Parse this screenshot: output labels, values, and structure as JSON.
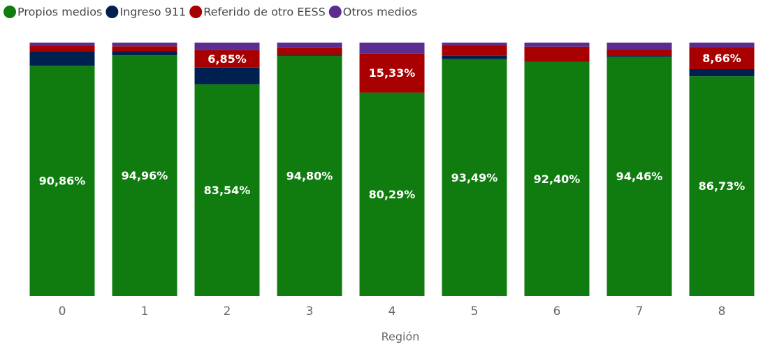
{
  "chart_data": {
    "type": "stacked_bar_100",
    "x_label": "Región",
    "categories": [
      "0",
      "1",
      "2",
      "3",
      "4",
      "5",
      "6",
      "7",
      "8"
    ],
    "ylim": [
      0,
      100
    ],
    "series": [
      {
        "name": "Propios medios",
        "color": "#107c10",
        "values": [
          90.86,
          94.96,
          83.54,
          94.8,
          80.29,
          93.49,
          92.4,
          94.46,
          86.73
        ],
        "value_labels": [
          "90,86%",
          "94,96%",
          "83,54%",
          "94,80%",
          "80,29%",
          "93,49%",
          "92,40%",
          "94,46%",
          "86,73%"
        ]
      },
      {
        "name": "Ingreso 911",
        "color": "#002050",
        "values": [
          5.8,
          1.6,
          6.6,
          0.4,
          0,
          1.3,
          0,
          0.3,
          2.8
        ]
      },
      {
        "name": "Referido de otro EESS",
        "color": "#a80000",
        "values": [
          2.2,
          2.0,
          6.85,
          2.8,
          15.33,
          4.2,
          6.0,
          2.7,
          8.66
        ],
        "value_labels": [
          null,
          null,
          "6,85%",
          null,
          "15,33%",
          null,
          null,
          null,
          "8,66%"
        ]
      },
      {
        "name": "Otros medios",
        "color": "#5c2d91",
        "values": [
          1.14,
          1.44,
          3.01,
          2.0,
          4.38,
          1.01,
          1.6,
          2.54,
          1.81
        ]
      }
    ]
  }
}
